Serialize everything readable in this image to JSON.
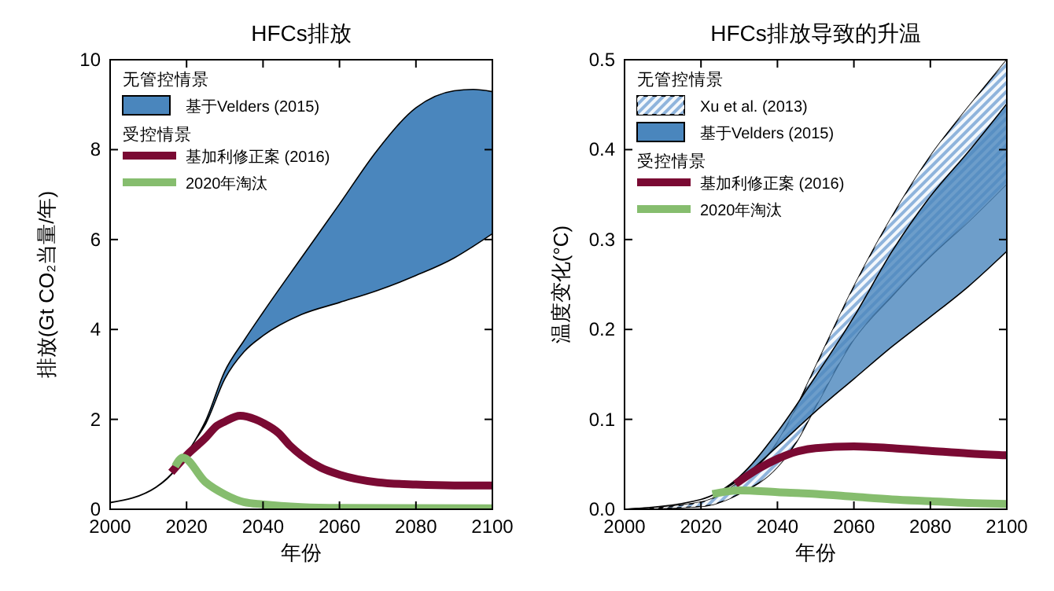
{
  "chart_data": [
    {
      "type": "line",
      "title": "HFCs排放",
      "xlabel": "年份",
      "ylabel": "排放(Gt CO₂当量/年)",
      "xlim": [
        2000,
        2100
      ],
      "xticks": [
        2000,
        2020,
        2040,
        2060,
        2080,
        2100
      ],
      "ylim": [
        0,
        10
      ],
      "yticks": [
        0,
        2,
        4,
        6,
        8,
        10
      ],
      "legend": "top left",
      "legend_title": "无管控情景",
      "annotations": [
        "受控情景"
      ],
      "series": [
        {
          "name": "基于Velders (2015)",
          "type": "area",
          "color": "#4a86bd",
          "x": [
            2019,
            2022,
            2025,
            2030,
            2035,
            2040,
            2050,
            2060,
            2070,
            2080,
            2090,
            2095,
            2100
          ],
          "values": [
            null,
            null,
            null,
            null,
            null,
            null,
            null,
            null,
            null,
            null,
            null,
            null,
            null
          ],
          "upper": [
            1.1,
            1.5,
            1.97,
            3.07,
            3.75,
            4.38,
            5.59,
            6.79,
            8.0,
            8.93,
            9.31,
            9.34,
            9.29
          ],
          "lower": [
            1.1,
            1.5,
            1.9,
            2.9,
            3.5,
            3.86,
            4.33,
            4.6,
            4.87,
            5.2,
            5.59,
            5.85,
            6.13
          ]
        },
        {
          "type": "line",
          "color": "#000000",
          "x": [
            2000,
            2012,
            2017,
            2019
          ],
          "values": [
            0.15,
            0.49,
            0.88,
            1.15
          ]
        },
        {
          "name": "基加利修正案 (2016)",
          "type": "line",
          "color": "#7a0a33",
          "x": [
            2016,
            2020,
            2025,
            2028,
            2030,
            2034,
            2038,
            2040,
            2044,
            2047,
            2050,
            2055,
            2060,
            2070,
            2080,
            2090,
            2100
          ],
          "values": [
            0.82,
            1.2,
            1.59,
            1.86,
            1.95,
            2.08,
            2.0,
            1.92,
            1.7,
            1.42,
            1.2,
            0.93,
            0.77,
            0.6,
            0.55,
            0.53,
            0.53
          ]
        },
        {
          "name": "2020年淘汰",
          "type": "line",
          "color": "#86bd6e",
          "x": [
            2017,
            2019,
            2025,
            2030,
            2035,
            2040,
            2050,
            2060,
            2100
          ],
          "values": [
            0.95,
            1.15,
            0.6,
            0.33,
            0.16,
            0.11,
            0.05,
            0.03,
            0.02
          ]
        }
      ]
    },
    {
      "type": "line",
      "title": "HFCs排放导致的升温",
      "xlabel": "年份",
      "ylabel": "温度变化(°C)",
      "xlim": [
        2000,
        2100
      ],
      "xticks": [
        2000,
        2020,
        2040,
        2060,
        2080,
        2100
      ],
      "ylim": [
        0,
        0.5
      ],
      "yticks": [
        {
          "value": 0,
          "label": "0.0"
        },
        {
          "value": 0.1,
          "label": "0.1"
        },
        {
          "value": 0.2,
          "label": "0.2"
        },
        {
          "value": 0.3,
          "label": "0.3"
        },
        {
          "value": 0.4,
          "label": "0.4"
        },
        {
          "value": 0.5,
          "label": "0.5"
        }
      ],
      "legend": "top left",
      "legend_title": "无管控情景",
      "annotations": [
        "受控情景"
      ],
      "series": [
        {
          "name": "Xu et al. (2013)",
          "type": "area",
          "color": "#8fb4dc",
          "x": [
            2000,
            2020,
            2030,
            2040,
            2045,
            2050,
            2060,
            2070,
            2080,
            2090,
            2100
          ],
          "values": [
            null,
            null,
            null,
            null,
            null,
            null,
            null,
            null,
            null,
            null,
            null
          ],
          "upper": [
            0,
            0.008,
            0.031,
            0.075,
            0.114,
            0.159,
            0.248,
            0.326,
            0.393,
            0.448,
            0.5
          ],
          "lower": [
            0,
            0.003,
            0.017,
            0.047,
            0.075,
            0.114,
            0.189,
            0.237,
            0.281,
            0.32,
            0.362
          ]
        },
        {
          "name": "基于Velders (2015)",
          "type": "area",
          "color": "#4a86bd",
          "x": [
            2000,
            2020,
            2030,
            2040,
            2050,
            2060,
            2070,
            2080,
            2090,
            2100
          ],
          "values": [
            null,
            null,
            null,
            null,
            null,
            null,
            null,
            null,
            null,
            null
          ],
          "upper": [
            0,
            0.011,
            0.036,
            0.086,
            0.148,
            0.214,
            0.287,
            0.348,
            0.398,
            0.451
          ],
          "lower": [
            0,
            0.011,
            0.033,
            0.07,
            0.109,
            0.145,
            0.181,
            0.214,
            0.248,
            0.287
          ]
        },
        {
          "name": "基加利修正案 (2016)",
          "type": "line",
          "color": "#7a0a33",
          "x": [
            2029,
            2035,
            2040,
            2045,
            2050,
            2060,
            2070,
            2080,
            2090,
            2100
          ],
          "values": [
            0.028,
            0.045,
            0.056,
            0.064,
            0.068,
            0.07,
            0.068,
            0.065,
            0.062,
            0.06
          ]
        },
        {
          "name": "2020年淘汰",
          "type": "line",
          "color": "#86bd6e",
          "x": [
            2023,
            2030,
            2040,
            2050,
            2060,
            2070,
            2080,
            2090,
            2100
          ],
          "values": [
            0.017,
            0.021,
            0.019,
            0.017,
            0.014,
            0.011,
            0.009,
            0.007,
            0.006
          ]
        }
      ]
    }
  ]
}
